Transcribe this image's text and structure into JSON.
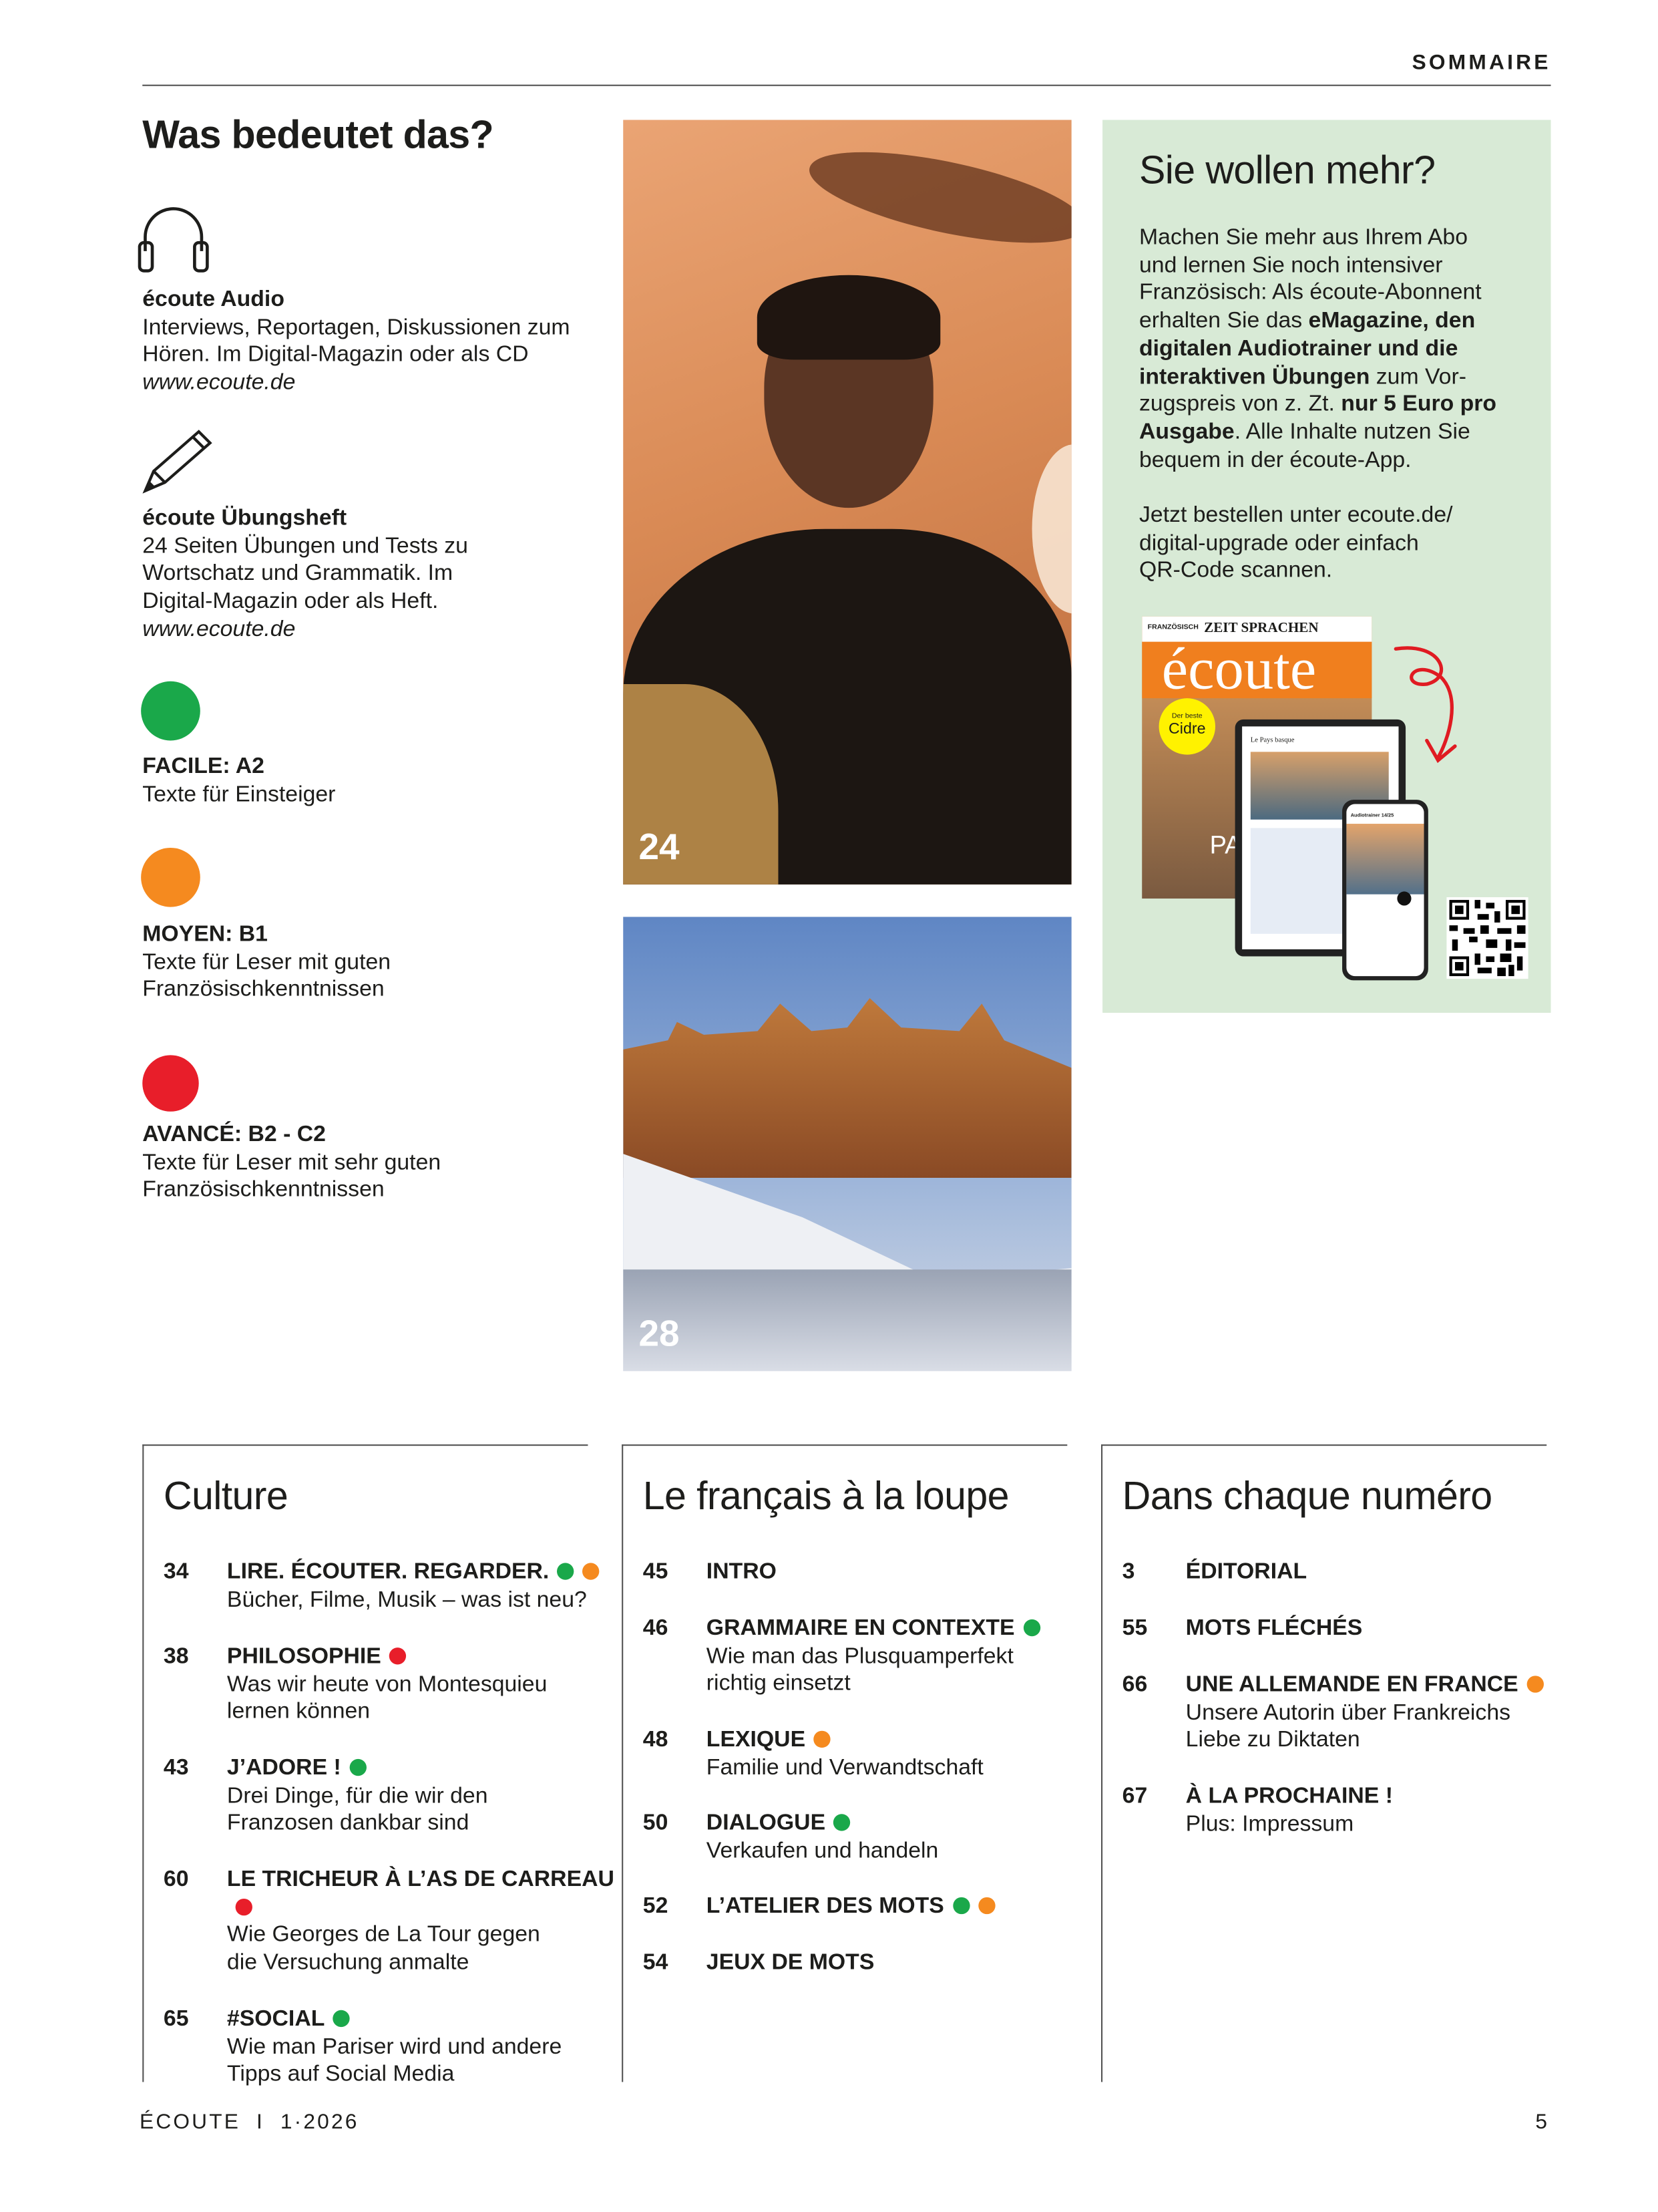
{
  "header": {
    "section": "SOMMAIRE"
  },
  "legend": {
    "title": "Was bedeutet das?",
    "items": [
      {
        "icon": "headphones-icon",
        "title": "écoute Audio",
        "lines": [
          "Interviews, Reportagen, Diskussionen zum",
          "Hören. Im Digital-Magazin oder als CD"
        ],
        "link": "www.ecoute.de"
      },
      {
        "icon": "pencil-icon",
        "title": "écoute Übungsheft",
        "lines": [
          "24 Seiten Übungen und Tests zu",
          "Wortschatz und Grammatik. Im",
          "Digital-Magazin oder als Heft."
        ],
        "link": "www.ecoute.de"
      }
    ],
    "levels": [
      {
        "color": "#1aa84a",
        "title": "FACILE: A2",
        "lines": [
          "Texte für Einsteiger"
        ]
      },
      {
        "color": "#f58a1f",
        "title": "MOYEN: B1",
        "lines": [
          "Texte für Leser mit guten",
          "Französischkenntnissen"
        ]
      },
      {
        "color": "#e81e2a",
        "title": "AVANCÉ: B2 - C2",
        "lines": [
          "Texte für Leser mit sehr guten",
          "Französischkenntnissen"
        ]
      }
    ]
  },
  "photos": [
    {
      "page": "24"
    },
    {
      "page": "28"
    }
  ],
  "promo": {
    "title": "Sie wollen mehr?",
    "bg": "#d8ead6",
    "cover": {
      "brand": "ZEIT SPRACHEN",
      "label": "FRANZÖSISCH",
      "logo": "écoute",
      "badge_small": "Der beste",
      "badge_big": "Cidre",
      "headline": "PAYS"
    },
    "tablet_title": "Le Pays basque",
    "phone_title": "Audiotrainer 14/25"
  },
  "sections": [
    {
      "title": "Culture",
      "entries": [
        {
          "page": "34",
          "title": "LIRE. ÉCOUTER. REGARDER.",
          "dots": [
            "#1aa84a",
            "#f58a1f"
          ],
          "sub": [
            "Bücher, Filme, Musik – was ist neu?"
          ]
        },
        {
          "page": "38",
          "title": "PHILOSOPHIE",
          "dots": [
            "#e81e2a"
          ],
          "sub": [
            "Was wir heute von Montesquieu",
            "lernen können"
          ]
        },
        {
          "page": "43",
          "title": "J’ADORE !",
          "dots": [
            "#1aa84a"
          ],
          "sub": [
            "Drei Dinge, für die wir den",
            "Franzosen dankbar sind"
          ]
        },
        {
          "page": "60",
          "title": "LE TRICHEUR À L’AS DE CARREAU",
          "dots": [
            "#e81e2a"
          ],
          "sub": [
            "Wie Georges de La Tour gegen",
            "die Versuchung anmalte"
          ]
        },
        {
          "page": "65",
          "title": "#SOCIAL",
          "dots": [
            "#1aa84a"
          ],
          "sub": [
            "Wie man Pariser wird und andere",
            "Tipps auf Social Media"
          ]
        }
      ]
    },
    {
      "title": "Le français à la loupe",
      "entries": [
        {
          "page": "45",
          "title": "INTRO",
          "dots": [],
          "sub": []
        },
        {
          "page": "46",
          "title": "GRAMMAIRE EN CONTEXTE",
          "dots": [
            "#1aa84a"
          ],
          "sub": [
            "Wie man das Plusquamperfekt",
            "richtig einsetzt"
          ]
        },
        {
          "page": "48",
          "title": "LEXIQUE",
          "dots": [
            "#f58a1f"
          ],
          "sub": [
            "Familie und Verwandtschaft"
          ]
        },
        {
          "page": "50",
          "title": "DIALOGUE",
          "dots": [
            "#1aa84a"
          ],
          "sub": [
            "Verkaufen und handeln"
          ]
        },
        {
          "page": "52",
          "title": "L’ATELIER DES MOTS",
          "dots": [
            "#1aa84a",
            "#f58a1f"
          ],
          "sub": []
        },
        {
          "page": "54",
          "title": "JEUX DE MOTS",
          "dots": [],
          "sub": []
        }
      ]
    },
    {
      "title": "Dans chaque numéro",
      "entries": [
        {
          "page": "3",
          "title": "ÉDITORIAL",
          "dots": [],
          "sub": []
        },
        {
          "page": "55",
          "title": "MOTS FLÉCHÉS",
          "dots": [],
          "sub": []
        },
        {
          "page": "66",
          "title": "UNE ALLEMANDE EN FRANCE",
          "dots": [
            "#f58a1f"
          ],
          "sub": [
            "Unsere Autorin über Frankreichs",
            "Liebe zu Diktaten"
          ]
        },
        {
          "page": "67",
          "title": "À LA PROCHAINE !",
          "dots": [],
          "sub": [
            "Plus: Impressum"
          ]
        }
      ]
    }
  ],
  "footer": {
    "magazine": "ÉCOUTE",
    "separator": "I",
    "issue": "1·2026",
    "page": "5"
  }
}
